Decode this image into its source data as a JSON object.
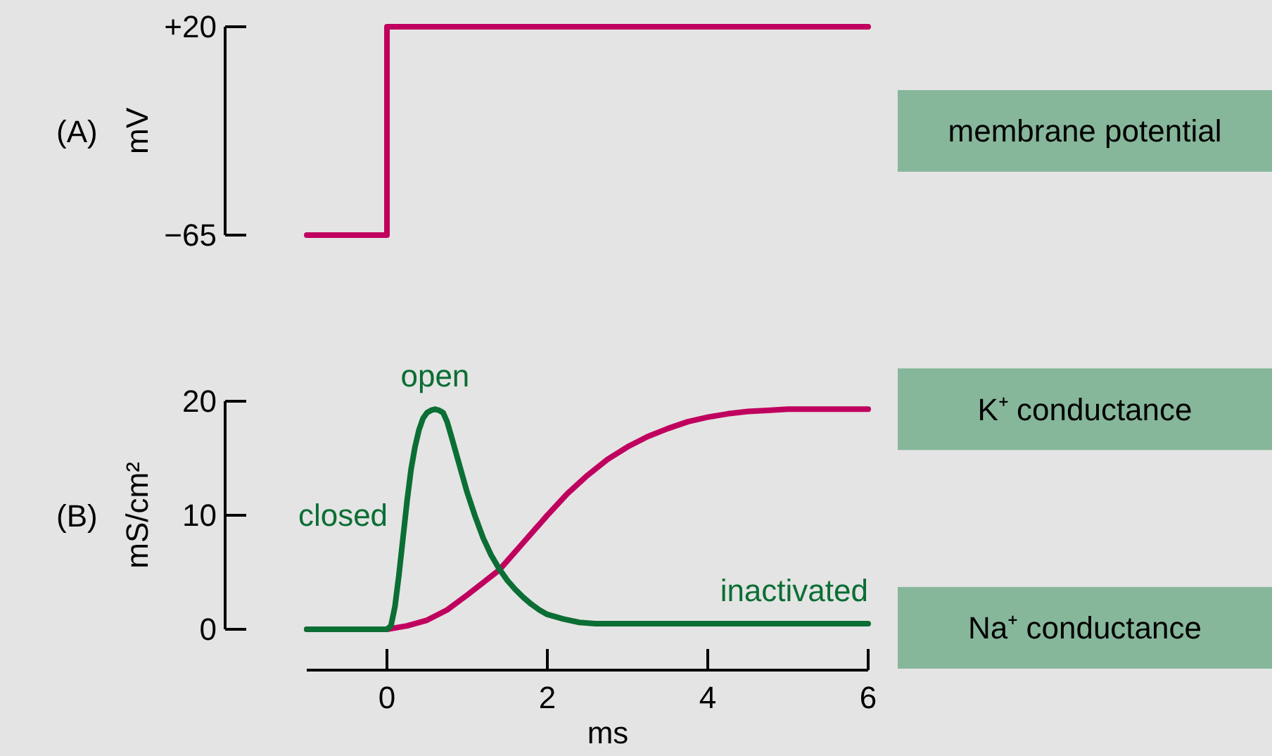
{
  "chart_data": [
    {
      "type": "step",
      "title": "(A)",
      "ylabel": "mV",
      "categories": [
        null,
        null,
        null,
        null,
        null,
        null,
        null,
        null
      ],
      "ylim": [
        -65,
        20
      ],
      "yticks": [
        {
          "value": 20,
          "label": "+20"
        },
        {
          "value": -65,
          "label": "−65"
        }
      ],
      "tick_labels": "y",
      "series": [
        {
          "name": "membrane potential",
          "color": "#c0005e",
          "values": [
            -65,
            20,
            20,
            20,
            20,
            20,
            20,
            20
          ]
        }
      ]
    },
    {
      "type": "line",
      "title": "(B)",
      "ylabel": "mS/cm²",
      "xlabel": "ms",
      "xlim": [
        -1,
        6
      ],
      "ylim": [
        0,
        20
      ],
      "xticks": [
        0,
        2,
        4,
        6
      ],
      "yticks": [
        0,
        10,
        20
      ],
      "annotations": [
        {
          "text": "open",
          "x": 0.6,
          "y": 19.3
        },
        {
          "text": "closed",
          "x": 0.15,
          "y": 6
        },
        {
          "text": "inactivated",
          "x": 6,
          "y": 0.5
        }
      ],
      "series": [
        {
          "name": "K⁺ conductance",
          "color": "#c0005e",
          "x": [
            -1,
            0,
            0.25,
            0.5,
            0.75,
            1.0,
            1.2,
            1.4,
            1.7,
            2.0,
            2.25,
            2.5,
            2.75,
            3.0,
            3.25,
            3.5,
            3.75,
            4.0,
            4.25,
            4.5,
            4.75,
            5.0,
            5.5,
            6.0
          ],
          "values": [
            0,
            0,
            0.3,
            0.8,
            1.7,
            3,
            4.1,
            5.2,
            7.6,
            10,
            11.9,
            13.5,
            14.9,
            16,
            16.9,
            17.6,
            18.2,
            18.6,
            18.9,
            19.1,
            19.2,
            19.3,
            19.3,
            19.3
          ]
        },
        {
          "name": "Na⁺ conductance",
          "color": "#0b6e34",
          "x": [
            -1,
            0,
            0.05,
            0.1,
            0.15,
            0.2,
            0.25,
            0.3,
            0.35,
            0.4,
            0.45,
            0.5,
            0.55,
            0.6,
            0.65,
            0.7,
            0.75,
            0.8,
            0.9,
            1.0,
            1.1,
            1.2,
            1.3,
            1.4,
            1.5,
            1.6,
            1.7,
            1.8,
            1.9,
            2.0,
            2.2,
            2.4,
            2.6,
            2.8,
            6
          ],
          "values": [
            0,
            0,
            0.3,
            2,
            4.8,
            8,
            11.2,
            14,
            16,
            17.5,
            18.5,
            19,
            19.2,
            19.3,
            19.2,
            19,
            18.2,
            17,
            14.5,
            12,
            9.9,
            8,
            6.5,
            5.3,
            4.3,
            3.5,
            2.8,
            2.2,
            1.7,
            1.3,
            0.9,
            0.6,
            0.5,
            0.5,
            0.5
          ]
        }
      ]
    }
  ]
}
